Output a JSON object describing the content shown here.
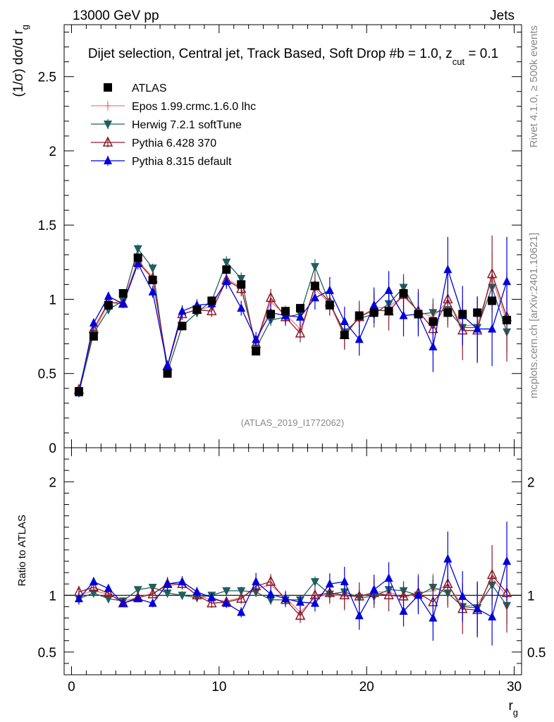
{
  "header": {
    "left": "13000 GeV pp",
    "right": "Jets"
  },
  "side_labels": {
    "rivet": "Rivet 4.1.0, ≥ 500k events",
    "mcplots": "mcplots.cern.ch [arXiv:2401.10621]"
  },
  "colors": {
    "atlas": "#000000",
    "epos": "#f08080",
    "herwig": "#1f5f5f",
    "pythia6": "#8b1a2a",
    "pythia8": "#0000dd",
    "refline": "#000000"
  },
  "chart_data": {
    "type": "scatter",
    "title": "Dijet selection, Central jet, Track Based, Soft Drop #b = 1.0, z",
    "title_sub": "cut",
    "title_tail": " = 0.1",
    "watermark": "(ATLAS_2019_I1772062)",
    "ylabel_main": "(1/σ) dσ/d r",
    "ylabel_main_sub": "g",
    "ylabel_ratio": "Ratio to ATLAS",
    "xlabel": "r",
    "xlabel_sub": "g",
    "xlim": [
      -0.5,
      30.5
    ],
    "ylim_main": [
      0,
      2.85
    ],
    "ylim_ratio": [
      0.3,
      2.3
    ],
    "xticks": [
      "0",
      "10",
      "20",
      "30"
    ],
    "yticks_main": [
      "0",
      "0.5",
      "1",
      "1.5",
      "2",
      "2.5"
    ],
    "yticks_ratio": [
      "0.5",
      "1",
      "2"
    ],
    "x": [
      0.5,
      1.5,
      2.5,
      3.5,
      4.5,
      5.5,
      6.5,
      7.5,
      8.5,
      9.5,
      10.5,
      11.5,
      12.5,
      13.5,
      14.5,
      15.5,
      16.5,
      17.5,
      18.5,
      19.5,
      20.5,
      21.5,
      22.5,
      23.5,
      24.5,
      25.5,
      26.5,
      27.5,
      28.5,
      29.5
    ],
    "series": [
      {
        "name": "ATLAS",
        "marker": "square",
        "line": false,
        "values": [
          0.38,
          0.75,
          0.96,
          1.04,
          1.28,
          1.13,
          0.5,
          0.82,
          0.93,
          0.99,
          1.2,
          1.1,
          0.65,
          0.9,
          0.92,
          0.94,
          1.09,
          0.96,
          0.76,
          0.89,
          0.91,
          0.92,
          1.04,
          0.9,
          0.85,
          0.91,
          0.9,
          0.91,
          0.99,
          0.86
        ],
        "errors": [
          0.01,
          0.01,
          0.01,
          0.01,
          0.01,
          0.01,
          0.01,
          0.01,
          0.01,
          0.01,
          0.01,
          0.01,
          0.01,
          0.01,
          0.01,
          0.01,
          0.01,
          0.01,
          0.01,
          0.02,
          0.02,
          0.02,
          0.02,
          0.02,
          0.02,
          0.02,
          0.02,
          0.02,
          0.02,
          0.02
        ]
      },
      {
        "name": "Epos 1.99.crmc.1.6.0 lhc",
        "marker": "cross",
        "line": true,
        "values": [
          0.38,
          0.78,
          0.97,
          0.99,
          1.26,
          1.15,
          0.54,
          0.9,
          0.93,
          0.95,
          1.14,
          1.08,
          0.69,
          0.98,
          0.9,
          0.8,
          1.07,
          0.97,
          0.75,
          0.88,
          0.94,
          0.95,
          1.02,
          0.92,
          0.88,
          0.99,
          0.82,
          0.83,
          1.14,
          0.85
        ],
        "errors": [
          0.02,
          0.03,
          0.03,
          0.03,
          0.04,
          0.04,
          0.02,
          0.04,
          0.04,
          0.04,
          0.05,
          0.05,
          0.04,
          0.06,
          0.06,
          0.06,
          0.08,
          0.08,
          0.08,
          0.09,
          0.09,
          0.1,
          0.11,
          0.12,
          0.13,
          0.14,
          0.15,
          0.16,
          0.18,
          0.2
        ]
      },
      {
        "name": "Herwig 7.2.1 softTune",
        "marker": "triangle-down",
        "line": true,
        "values": [
          0.37,
          0.77,
          0.93,
          0.99,
          1.34,
          1.21,
          0.51,
          0.82,
          0.91,
          0.99,
          1.25,
          1.14,
          0.67,
          0.86,
          0.88,
          0.9,
          1.22,
          0.97,
          0.78,
          0.87,
          0.9,
          0.97,
          1.08,
          0.9,
          0.91,
          0.93,
          0.81,
          0.81,
          1.08,
          0.78
        ],
        "errors": [
          0.01,
          0.02,
          0.02,
          0.02,
          0.03,
          0.03,
          0.02,
          0.03,
          0.03,
          0.03,
          0.04,
          0.04,
          0.03,
          0.04,
          0.04,
          0.04,
          0.05,
          0.05,
          0.05,
          0.06,
          0.06,
          0.07,
          0.07,
          0.08,
          0.09,
          0.1,
          0.1,
          0.11,
          0.12,
          0.14
        ]
      },
      {
        "name": "Pythia 6.428 370",
        "marker": "triangle-up-open",
        "line": true,
        "values": [
          0.39,
          0.8,
          0.98,
          0.97,
          1.25,
          1.14,
          0.55,
          0.9,
          0.93,
          0.92,
          1.13,
          1.07,
          0.7,
          1.01,
          0.88,
          0.77,
          1.09,
          0.98,
          0.76,
          0.88,
          0.93,
          0.92,
          1.03,
          0.92,
          0.8,
          1.0,
          0.79,
          0.79,
          1.17,
          0.88
        ],
        "errors": [
          0.02,
          0.03,
          0.03,
          0.03,
          0.04,
          0.04,
          0.03,
          0.04,
          0.04,
          0.04,
          0.05,
          0.05,
          0.05,
          0.06,
          0.06,
          0.06,
          0.08,
          0.09,
          0.1,
          0.11,
          0.12,
          0.13,
          0.14,
          0.15,
          0.17,
          0.19,
          0.2,
          0.22,
          0.26,
          0.3
        ]
      },
      {
        "name": "Pythia 8.315 default",
        "marker": "triangle-up",
        "line": true,
        "values": [
          0.37,
          0.84,
          1.02,
          0.97,
          1.24,
          1.05,
          0.55,
          0.92,
          0.96,
          0.97,
          1.12,
          0.94,
          0.73,
          0.91,
          0.89,
          0.88,
          1.01,
          1.06,
          0.85,
          0.73,
          0.96,
          1.06,
          0.89,
          0.9,
          0.68,
          1.2,
          0.89,
          0.8,
          0.8,
          1.12
        ],
        "errors": [
          0.02,
          0.03,
          0.03,
          0.03,
          0.04,
          0.04,
          0.03,
          0.04,
          0.04,
          0.04,
          0.05,
          0.05,
          0.05,
          0.06,
          0.06,
          0.06,
          0.08,
          0.09,
          0.1,
          0.11,
          0.12,
          0.13,
          0.14,
          0.15,
          0.17,
          0.22,
          0.2,
          0.22,
          0.25,
          0.3
        ]
      }
    ],
    "ratio_series": [
      {
        "name": "Epos 1.99.crmc.1.6.0 lhc",
        "values": [
          1.0,
          1.04,
          1.01,
          0.95,
          0.98,
          1.02,
          1.08,
          1.1,
          1.0,
          0.96,
          0.95,
          0.98,
          1.06,
          1.09,
          0.98,
          0.85,
          0.98,
          1.01,
          0.99,
          0.99,
          1.03,
          1.03,
          0.98,
          1.02,
          1.04,
          1.09,
          0.91,
          0.91,
          1.15,
          0.99
        ]
      },
      {
        "name": "Herwig 7.2.1 softTune",
        "values": [
          0.97,
          1.02,
          0.97,
          0.95,
          1.05,
          1.07,
          1.02,
          1.0,
          0.98,
          1.0,
          1.04,
          1.04,
          1.03,
          0.96,
          0.96,
          0.96,
          1.12,
          1.01,
          1.03,
          0.98,
          0.99,
          1.05,
          1.04,
          1.0,
          1.07,
          1.02,
          0.9,
          0.89,
          1.09,
          0.91
        ]
      },
      {
        "name": "Pythia 6.428 370",
        "values": [
          1.03,
          1.07,
          1.02,
          0.93,
          0.98,
          1.01,
          1.1,
          1.1,
          1.0,
          0.93,
          0.94,
          0.97,
          1.08,
          1.12,
          0.96,
          0.82,
          1.0,
          1.02,
          1.0,
          0.99,
          1.02,
          1.0,
          0.99,
          1.02,
          0.94,
          1.1,
          0.88,
          0.87,
          1.18,
          1.02
        ]
      },
      {
        "name": "Pythia 8.315 default",
        "values": [
          0.97,
          1.12,
          1.06,
          0.93,
          0.97,
          0.93,
          1.1,
          1.12,
          1.03,
          0.98,
          0.93,
          0.85,
          1.12,
          1.01,
          0.97,
          0.94,
          0.93,
          1.1,
          1.12,
          0.82,
          1.05,
          1.15,
          0.86,
          1.0,
          0.8,
          1.32,
          0.99,
          0.88,
          0.81,
          1.3
        ]
      }
    ]
  }
}
